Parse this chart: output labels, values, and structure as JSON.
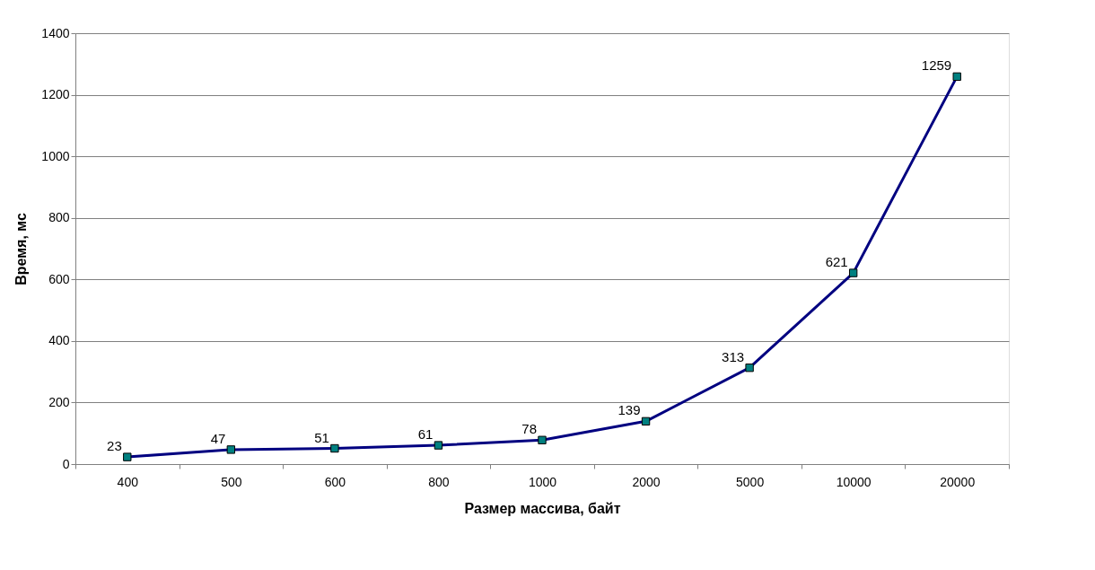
{
  "chart_data": {
    "type": "line",
    "xlabel": "Размер массива, байт",
    "ylabel": "Время, мс",
    "categories": [
      "400",
      "500",
      "600",
      "800",
      "1000",
      "2000",
      "5000",
      "10000",
      "20000"
    ],
    "series": [
      {
        "color": "#000080",
        "values": [
          23,
          47,
          51,
          61,
          78,
          139,
          313,
          621,
          1259
        ]
      }
    ],
    "marker": "square",
    "line_style": "solid",
    "data_labels": true,
    "grid": "y",
    "ylim": [
      0,
      1400
    ],
    "yticks": [
      0,
      200,
      400,
      600,
      800,
      1000,
      1200,
      1400
    ]
  }
}
